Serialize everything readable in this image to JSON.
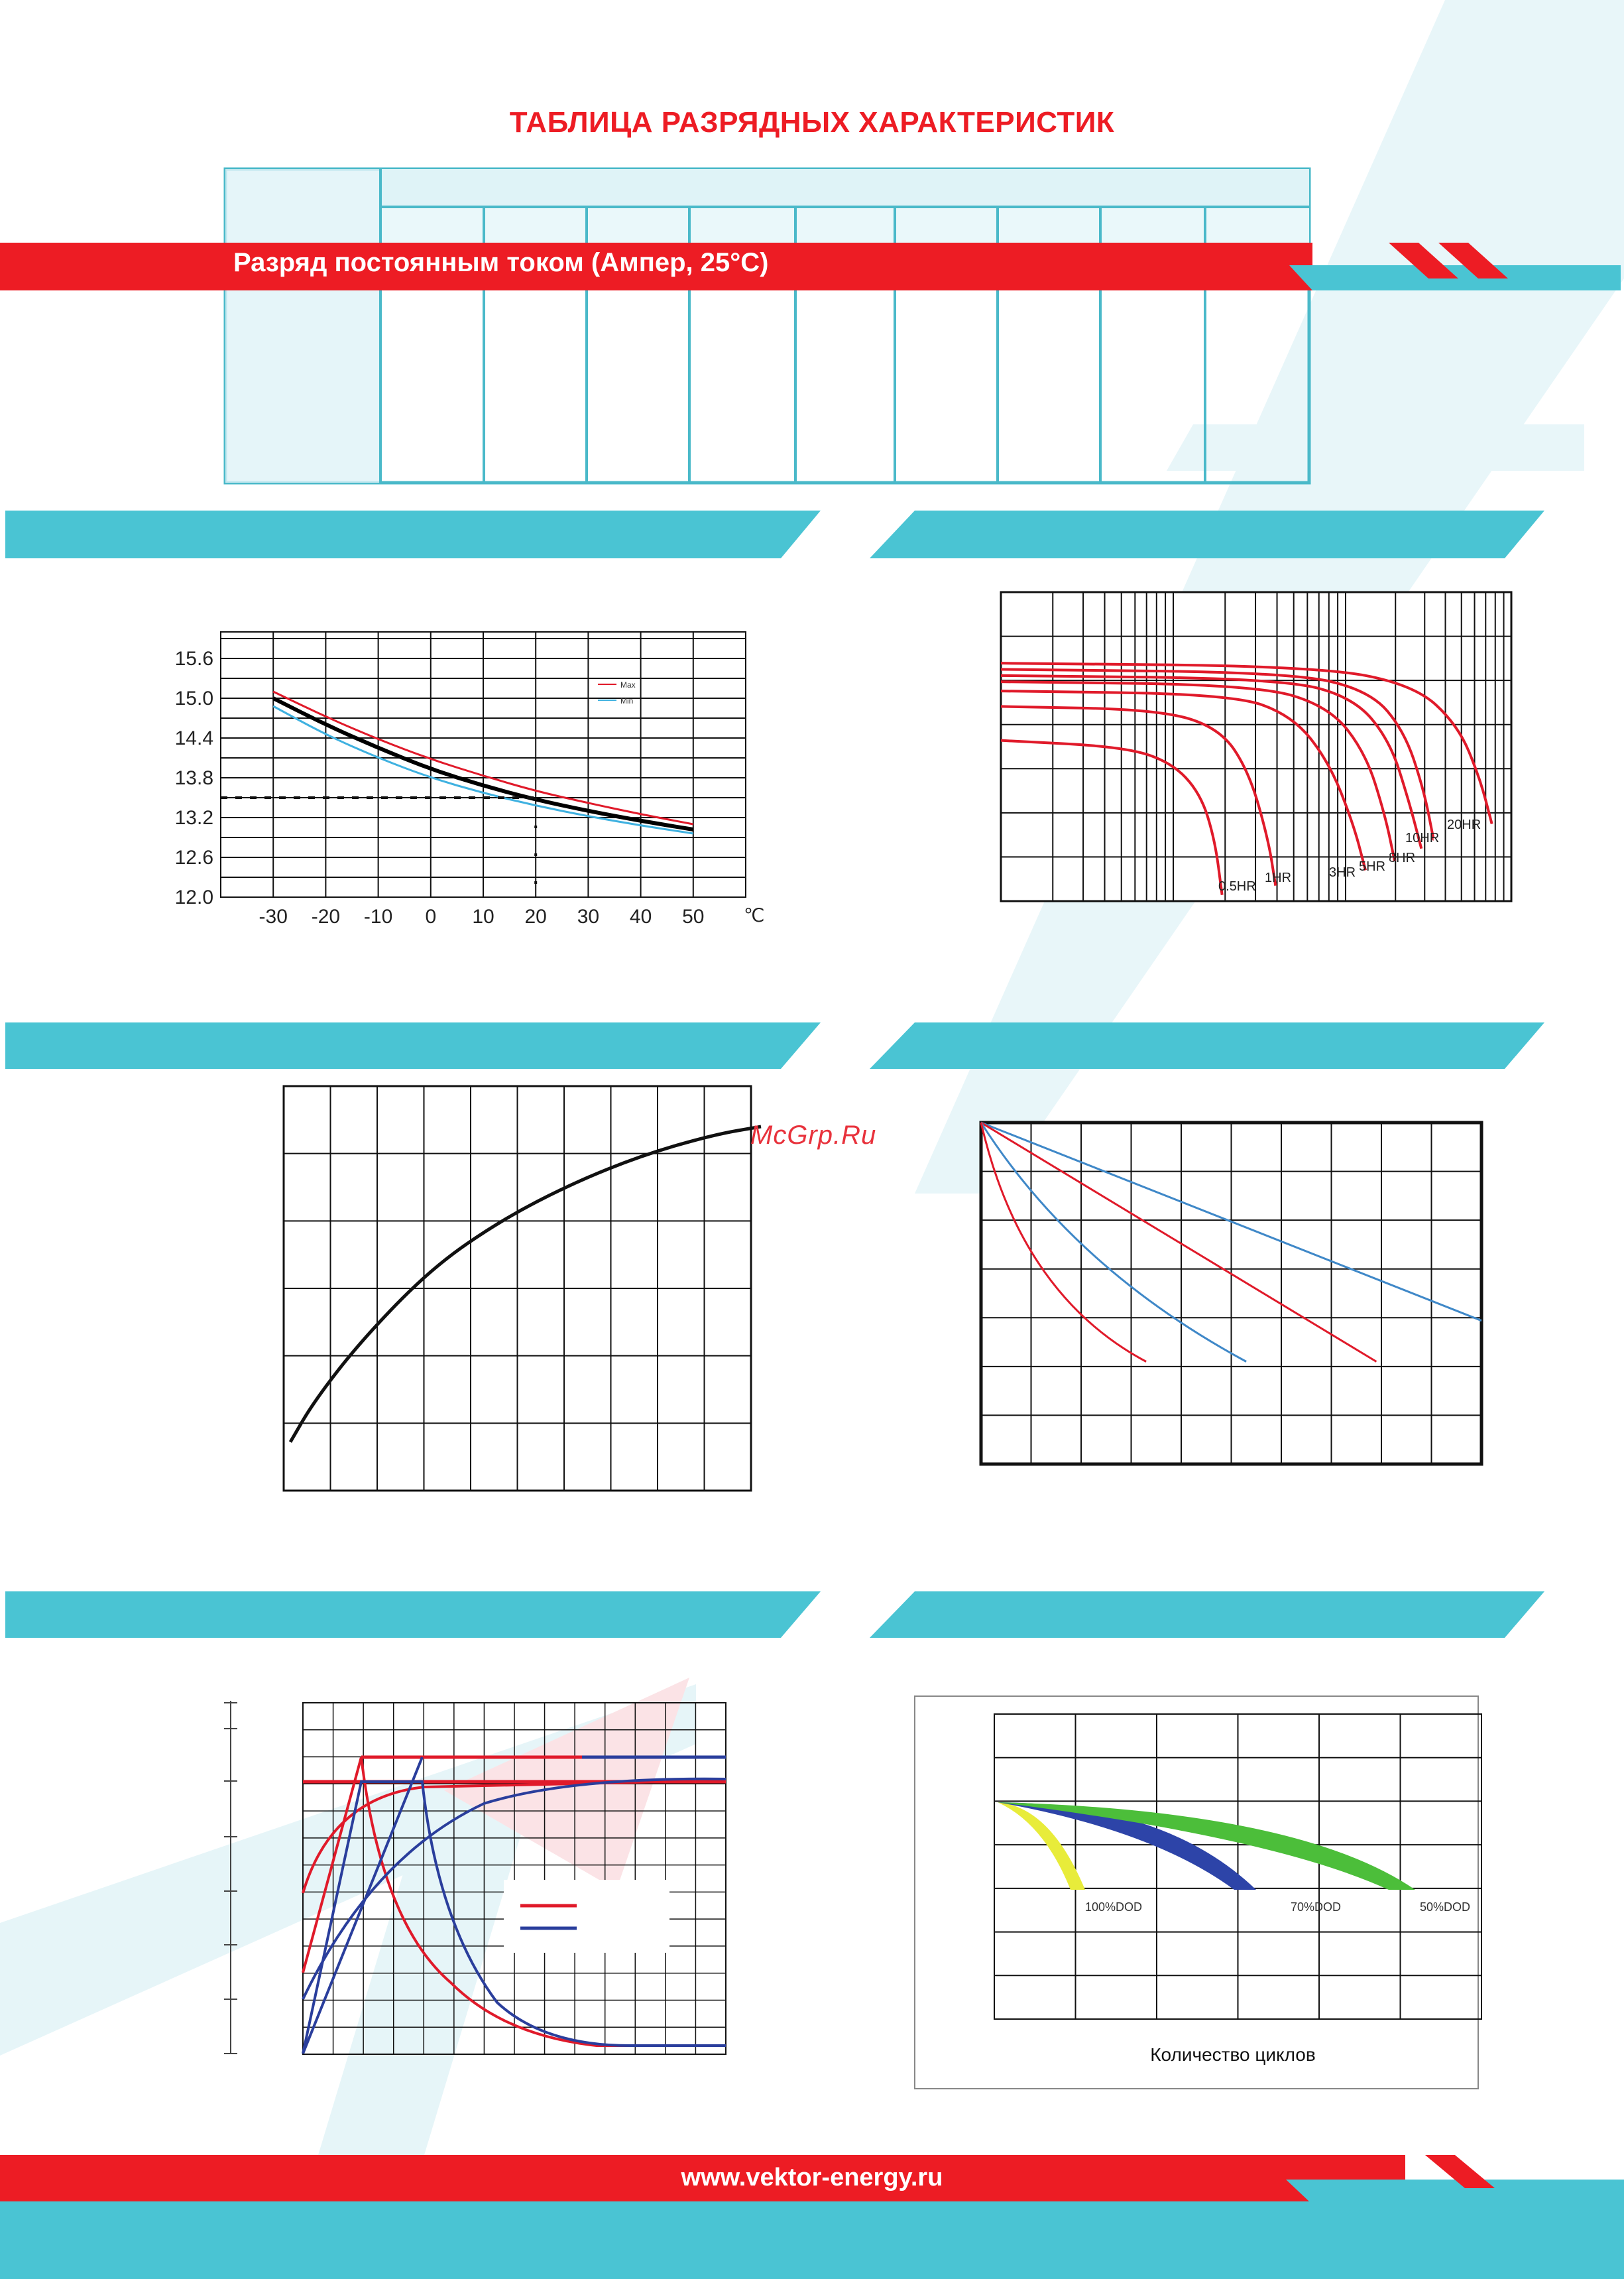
{
  "page": {
    "title": "ТАБЛИЦА РАЗРЯДНЫХ ХАРАКТЕРИСТИК",
    "discharge_band_label": "Разряд постоянным током (Ампер, 25°C)",
    "watermark": "McGrp.Ru",
    "footer_url": "www.vektor-energy.ru"
  },
  "colors": {
    "accent_red": "#ed1c24",
    "accent_teal": "#4ac4d3",
    "light_teal": "#e3f5f8",
    "table_line": "#4ab9c9",
    "grid": "#111111",
    "series_red": "#e01a2a",
    "series_blue": "#2a3e9c",
    "series_light_blue": "#3f88c8"
  },
  "charts": {
    "temperature_voltage": {
      "chart_data": {
        "type": "line",
        "x_ticks": [
          "-30",
          "-20",
          "-10",
          "0",
          "10",
          "20",
          "30",
          "40",
          "50"
        ],
        "x_unit": "℃",
        "y_ticks": [
          "12.0",
          "12.6",
          "13.2",
          "13.8",
          "14.4",
          "15.0",
          "15.6"
        ],
        "ylim": [
          12.0,
          16.0
        ],
        "xlim": [
          -40,
          60
        ],
        "legend": [
          "Max",
          "Min"
        ],
        "legend_position": "top-right",
        "grid": true,
        "series": [
          {
            "name": "Max",
            "color": "#e01a2a",
            "x": [
              -30,
              -20,
              -10,
              0,
              10,
              20,
              30,
              40,
              50
            ],
            "y": [
              15.1,
              14.72,
              14.38,
              14.08,
              13.83,
              13.6,
              13.42,
              13.25,
              13.1
            ]
          },
          {
            "color": "#000000",
            "x": [
              -30,
              -20,
              -10,
              0,
              10,
              20,
              30,
              40,
              50
            ],
            "y": [
              15.0,
              14.6,
              14.25,
              13.93,
              13.68,
              13.47,
              13.3,
              13.15,
              13.02
            ]
          },
          {
            "name": "Min",
            "color": "#3fb1e0",
            "x": [
              -30,
              -20,
              -10,
              0,
              10,
              20,
              30,
              40,
              50
            ],
            "y": [
              14.88,
              14.45,
              14.1,
              13.8,
              13.57,
              13.38,
              13.22,
              13.08,
              12.96
            ]
          }
        ],
        "reference": {
          "y": 13.5,
          "x": 20
        }
      }
    },
    "discharge_curves": {
      "chart_data": {
        "type": "line",
        "labels": [
          "0.5HR",
          "1HR",
          "3HR",
          "5HR",
          "8HR",
          "10HR",
          "20HR"
        ],
        "grid": true,
        "series": [
          {
            "name": "0.5HR",
            "color": "#e01a2a",
            "x": [
              0,
              0.5,
              0.7,
              0.82,
              0.88,
              0.91
            ],
            "y": [
              0.52,
              0.5,
              0.45,
              0.35,
              0.2,
              0.02
            ]
          },
          {
            "name": "1HR",
            "color": "#e01a2a",
            "x": [
              0,
              0.65,
              0.9,
              1.02,
              1.1,
              1.13
            ],
            "y": [
              0.63,
              0.62,
              0.56,
              0.42,
              0.2,
              0.05
            ]
          },
          {
            "name": "3HR",
            "color": "#e01a2a",
            "x": [
              0,
              0.95,
              1.2,
              1.35,
              1.45,
              1.5
            ],
            "y": [
              0.68,
              0.67,
              0.6,
              0.45,
              0.25,
              0.1
            ]
          },
          {
            "name": "5HR",
            "color": "#e01a2a",
            "x": [
              0,
              1.05,
              1.35,
              1.5,
              1.58,
              1.62
            ],
            "y": [
              0.71,
              0.7,
              0.63,
              0.48,
              0.28,
              0.13
            ]
          },
          {
            "name": "8HR",
            "color": "#e01a2a",
            "x": [
              0,
              1.15,
              1.45,
              1.6,
              1.68,
              1.73
            ],
            "y": [
              0.73,
              0.72,
              0.66,
              0.52,
              0.32,
              0.17
            ]
          },
          {
            "name": "10HR",
            "color": "#e01a2a",
            "x": [
              0,
              1.2,
              1.52,
              1.66,
              1.74,
              1.78
            ],
            "y": [
              0.75,
              0.74,
              0.68,
              0.55,
              0.36,
              0.2
            ]
          },
          {
            "name": "20HR",
            "color": "#e01a2a",
            "x": [
              0,
              1.3,
              1.7,
              1.88,
              1.97,
              2.02
            ],
            "y": [
              0.77,
              0.76,
              0.7,
              0.57,
              0.4,
              0.25
            ]
          }
        ]
      }
    },
    "capacity_temperature": {
      "chart_data": {
        "type": "line",
        "grid": true,
        "series": [
          {
            "color": "#111111",
            "x": [
              0,
              0.05,
              0.15,
              0.3,
              0.45,
              0.6,
              0.75,
              0.9,
              1.0
            ],
            "y": [
              0.12,
              0.22,
              0.37,
              0.55,
              0.67,
              0.76,
              0.83,
              0.88,
              0.9
            ]
          }
        ]
      }
    },
    "self_discharge": {
      "chart_data": {
        "type": "line",
        "grid": true,
        "series": [
          {
            "color": "#3f88c8",
            "x": [
              0,
              1.0
            ],
            "y": [
              1.0,
              0.42
            ]
          },
          {
            "color": "#e01a2a",
            "x": [
              0,
              0.79
            ],
            "y": [
              1.0,
              0.3
            ]
          },
          {
            "color": "#3f88c8",
            "x": [
              0,
              0.53
            ],
            "y": [
              1.0,
              0.3
            ]
          },
          {
            "color": "#e01a2a",
            "x": [
              0,
              0.33
            ],
            "y": [
              1.0,
              0.3
            ]
          }
        ]
      }
    },
    "charging_characteristics": {
      "chart_data": {
        "type": "line",
        "grid": true,
        "legend_colors": [
          "#e01a2a",
          "#2a3e9c"
        ],
        "series": [
          {
            "color": "#e01a2a",
            "x": [
              0.0,
              0.14,
              0.66,
              1.0
            ],
            "y": [
              0.86,
              0.86,
              0.86,
              0.86
            ]
          },
          {
            "color": "#2a3e9c",
            "x": [
              0.66,
              1.0
            ],
            "y": [
              0.86,
              0.86
            ]
          }
        ]
      }
    },
    "cycle_life": {
      "chart_data": {
        "type": "area",
        "labels": [
          "100%DOD",
          "70%DOD",
          "50%DOD"
        ],
        "caption": "Количество циклов",
        "grid": true,
        "series": [
          {
            "name": "100%DOD",
            "color": "#e8ec3a"
          },
          {
            "name": "70%DOD",
            "color": "#2d44a8"
          },
          {
            "name": "50%DOD",
            "color": "#4cbe3a"
          }
        ]
      }
    }
  }
}
